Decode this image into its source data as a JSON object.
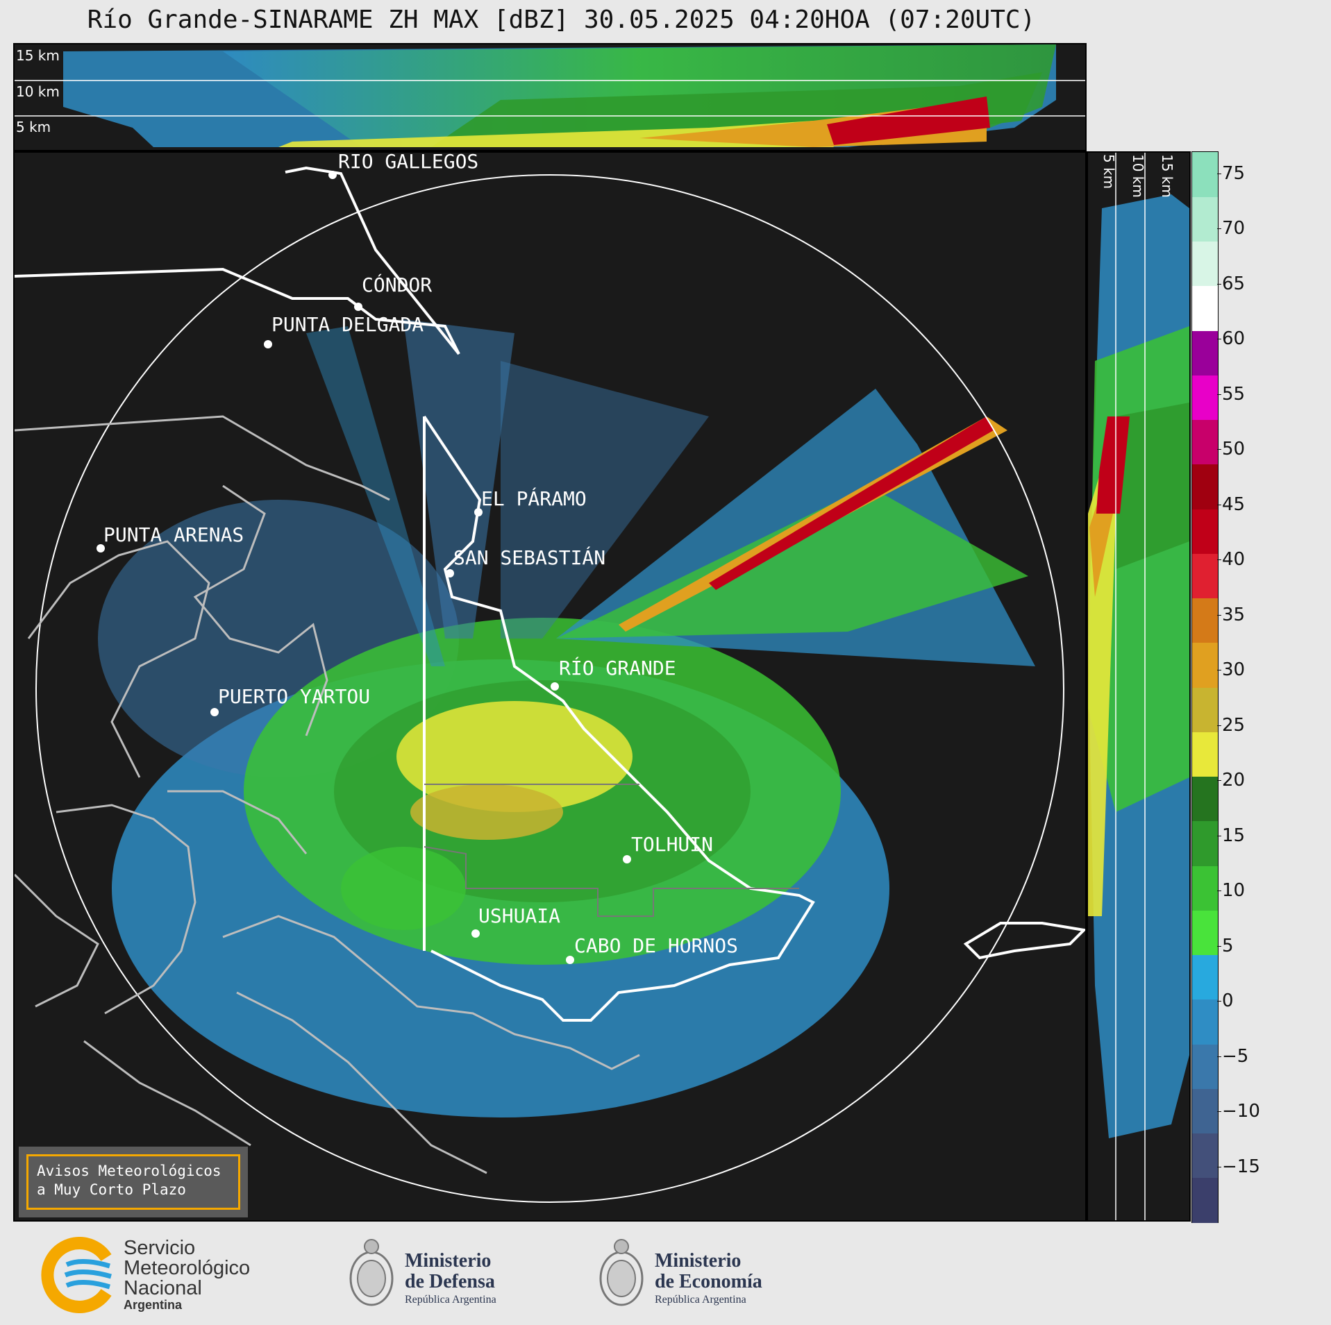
{
  "title": "Río Grande-SINARAME ZH MAX [dBZ] 30.05.2025 04:20HOA (07:20UTC)",
  "top_panel": {
    "height_labels": [
      "15 km",
      "10 km",
      "5 km"
    ]
  },
  "side_panel": {
    "height_labels": [
      "5 km",
      "10 km",
      "15 km"
    ]
  },
  "colorbar": {
    "unit": "dBZ",
    "ticks": [
      "75",
      "70",
      "65",
      "60",
      "55",
      "50",
      "45",
      "40",
      "35",
      "30",
      "25",
      "20",
      "15",
      "10",
      "5",
      "0",
      "−5",
      "−10",
      "−15"
    ],
    "range": [
      -20,
      77
    ],
    "colors": [
      "#3b3f6b",
      "#43507a",
      "#3f6492",
      "#3a78ab",
      "#2f8dc4",
      "#28a9de",
      "#49e33b",
      "#3bc234",
      "#2f9a2c",
      "#25741f",
      "#e8e83a",
      "#c8b430",
      "#e0a020",
      "#d47a18",
      "#e02030",
      "#c00018",
      "#a00010",
      "#c8006a",
      "#e800c8",
      "#9a009a",
      "#ffffff",
      "#d8f5e6",
      "#b2ebd0",
      "#8ce0bc"
    ]
  },
  "map": {
    "cities": [
      {
        "name": "RÍO GALLEGOS"
      },
      {
        "name": "CÓNDOR"
      },
      {
        "name": "PUNTA DELGADA"
      },
      {
        "name": "EL PÁRAMO"
      },
      {
        "name": "PUNTA ARENAS"
      },
      {
        "name": "SAN SEBASTIÁN"
      },
      {
        "name": "RÍO GRANDE"
      },
      {
        "name": "PUERTO YARTOU"
      },
      {
        "name": "TOLHUIN"
      },
      {
        "name": "USHUAIA"
      },
      {
        "name": "CABO DE HORNOS"
      }
    ]
  },
  "warning_box": {
    "line1": "Avisos Meteorológicos",
    "line2": "a Muy Corto Plazo"
  },
  "logos": {
    "smn": {
      "line1": "Servicio",
      "line2": "Meteorológico",
      "line3": "Nacional",
      "sub": "Argentina"
    },
    "defensa": {
      "line1": "Ministerio",
      "line2": "de Defensa",
      "line3": "República Argentina"
    },
    "economia": {
      "line1": "Ministerio",
      "line2": "de Economía",
      "line3": "República Argentina"
    }
  }
}
